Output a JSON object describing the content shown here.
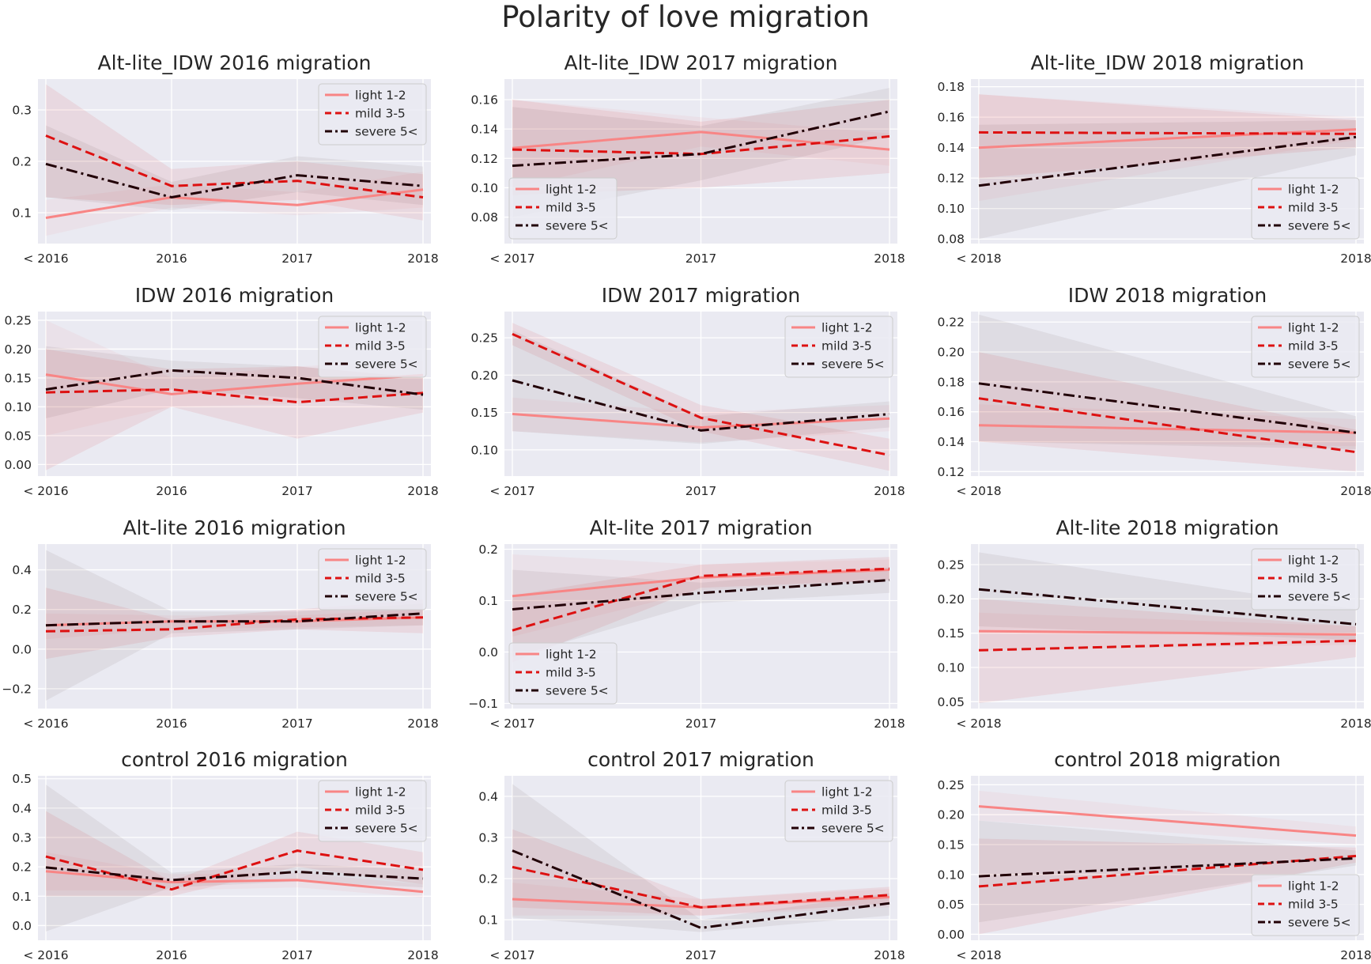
{
  "figure": {
    "title": "Polarity of love migration"
  },
  "series_style": {
    "light": {
      "label": "light 1-2",
      "color": "#f88585"
    },
    "mild": {
      "label": "mild 3-5",
      "color": "#dd1111"
    },
    "severe": {
      "label": "severe 5<",
      "color": "#210006"
    }
  },
  "chart_data": [
    {
      "type": "line",
      "title": "Alt-lite_IDW 2016 migration",
      "categories": [
        "< 2016",
        "2016",
        "2017",
        "2018"
      ],
      "ylim": [
        0.04,
        0.36
      ],
      "yticks": [
        0.1,
        0.2,
        0.3
      ],
      "yfmt": 1,
      "legend": "top-right",
      "series": [
        {
          "name": "light 1-2",
          "values": [
            0.09,
            0.13,
            0.115,
            0.145
          ],
          "lower": [
            0.055,
            0.11,
            0.095,
            0.11
          ],
          "upper": [
            0.125,
            0.155,
            0.14,
            0.18
          ]
        },
        {
          "name": "mild 3-5",
          "values": [
            0.25,
            0.152,
            0.162,
            0.13
          ],
          "lower": [
            0.13,
            0.115,
            0.125,
            0.085
          ],
          "upper": [
            0.35,
            0.185,
            0.2,
            0.175
          ]
        },
        {
          "name": "severe 5<",
          "values": [
            0.195,
            0.13,
            0.173,
            0.152
          ],
          "lower": [
            0.13,
            0.105,
            0.14,
            0.115
          ],
          "upper": [
            0.27,
            0.16,
            0.21,
            0.19
          ]
        }
      ]
    },
    {
      "type": "line",
      "title": "Alt-lite_IDW 2017 migration",
      "categories": [
        "< 2017",
        "2017",
        "2018"
      ],
      "ylim": [
        0.062,
        0.174
      ],
      "yticks": [
        0.08,
        0.1,
        0.12,
        0.14,
        0.16
      ],
      "yfmt": 2,
      "legend": "bottom-left",
      "series": [
        {
          "name": "light 1-2",
          "values": [
            0.127,
            0.138,
            0.126
          ],
          "lower": [
            0.1,
            0.128,
            0.115
          ],
          "upper": [
            0.16,
            0.148,
            0.137
          ]
        },
        {
          "name": "mild 3-5",
          "values": [
            0.126,
            0.123,
            0.135
          ],
          "lower": [
            0.095,
            0.1,
            0.11
          ],
          "upper": [
            0.16,
            0.145,
            0.16
          ]
        },
        {
          "name": "severe 5<",
          "values": [
            0.115,
            0.123,
            0.152
          ],
          "lower": [
            0.08,
            0.105,
            0.135
          ],
          "upper": [
            0.155,
            0.142,
            0.168
          ]
        }
      ]
    },
    {
      "type": "line",
      "title": "Alt-lite_IDW 2018 migration",
      "categories": [
        "< 2018",
        "2018"
      ],
      "ylim": [
        0.077,
        0.185
      ],
      "yticks": [
        0.08,
        0.1,
        0.12,
        0.14,
        0.16,
        0.18
      ],
      "yfmt": 2,
      "legend": "bottom-right",
      "series": [
        {
          "name": "light 1-2",
          "values": [
            0.14,
            0.152
          ],
          "lower": [
            0.105,
            0.145
          ],
          "upper": [
            0.175,
            0.16
          ]
        },
        {
          "name": "mild 3-5",
          "values": [
            0.15,
            0.149
          ],
          "lower": [
            0.12,
            0.14
          ],
          "upper": [
            0.175,
            0.158
          ]
        },
        {
          "name": "severe 5<",
          "values": [
            0.115,
            0.147
          ],
          "lower": [
            0.08,
            0.135
          ],
          "upper": [
            0.155,
            0.158
          ]
        }
      ]
    },
    {
      "type": "line",
      "title": "IDW 2016 migration",
      "categories": [
        "< 2016",
        "2016",
        "2017",
        "2018"
      ],
      "ylim": [
        -0.02,
        0.265
      ],
      "yticks": [
        0,
        0.05,
        0.1,
        0.15,
        0.2,
        0.25
      ],
      "yfmt": 2,
      "legend": "top-right",
      "series": [
        {
          "name": "light 1-2",
          "values": [
            0.156,
            0.122,
            0.14,
            0.155
          ],
          "lower": [
            0.05,
            0.1,
            0.105,
            0.125
          ],
          "upper": [
            0.25,
            0.15,
            0.17,
            0.18
          ]
        },
        {
          "name": "mild 3-5",
          "values": [
            0.125,
            0.13,
            0.108,
            0.124
          ],
          "lower": [
            -0.01,
            0.1,
            0.045,
            0.09
          ],
          "upper": [
            0.2,
            0.165,
            0.17,
            0.15
          ]
        },
        {
          "name": "severe 5<",
          "values": [
            0.13,
            0.163,
            0.15,
            0.121
          ],
          "lower": [
            0.08,
            0.13,
            0.115,
            0.095
          ],
          "upper": [
            0.205,
            0.18,
            0.17,
            0.15
          ]
        }
      ]
    },
    {
      "type": "line",
      "title": "IDW 2017 migration",
      "categories": [
        "< 2017",
        "2017",
        "2018"
      ],
      "ylim": [
        0.065,
        0.285
      ],
      "yticks": [
        0.1,
        0.15,
        0.2,
        0.25
      ],
      "yfmt": 2,
      "legend": "top-right",
      "series": [
        {
          "name": "light 1-2",
          "values": [
            0.148,
            0.13,
            0.142
          ],
          "lower": [
            0.125,
            0.11,
            0.125
          ],
          "upper": [
            0.17,
            0.15,
            0.16
          ]
        },
        {
          "name": "mild 3-5",
          "values": [
            0.255,
            0.143,
            0.093
          ],
          "lower": [
            0.24,
            0.125,
            0.072
          ],
          "upper": [
            0.27,
            0.16,
            0.115
          ]
        },
        {
          "name": "severe 5<",
          "values": [
            0.193,
            0.126,
            0.148
          ],
          "lower": [
            0.125,
            0.108,
            0.13
          ],
          "upper": [
            0.26,
            0.145,
            0.165
          ]
        }
      ]
    },
    {
      "type": "line",
      "title": "IDW 2018 migration",
      "categories": [
        "< 2018",
        "2018"
      ],
      "ylim": [
        0.117,
        0.227
      ],
      "yticks": [
        0.12,
        0.14,
        0.16,
        0.18,
        0.2,
        0.22
      ],
      "yfmt": 2,
      "legend": "top-right",
      "series": [
        {
          "name": "light 1-2",
          "values": [
            0.151,
            0.146
          ],
          "lower": [
            0.14,
            0.137
          ],
          "upper": [
            0.165,
            0.155
          ]
        },
        {
          "name": "mild 3-5",
          "values": [
            0.169,
            0.133
          ],
          "lower": [
            0.14,
            0.12
          ],
          "upper": [
            0.2,
            0.148
          ]
        },
        {
          "name": "severe 5<",
          "values": [
            0.179,
            0.146
          ],
          "lower": [
            0.14,
            0.135
          ],
          "upper": [
            0.225,
            0.157
          ]
        }
      ]
    },
    {
      "type": "line",
      "title": "Alt-lite 2016 migration",
      "categories": [
        "< 2016",
        "2016",
        "2017",
        "2018"
      ],
      "ylim": [
        -0.3,
        0.53
      ],
      "yticks": [
        -0.2,
        0,
        0.2,
        0.4
      ],
      "yfmt": 1,
      "legend": "top-right",
      "series": [
        {
          "name": "light 1-2",
          "values": [
            0.12,
            0.14,
            0.14,
            0.16
          ],
          "lower": [
            0.05,
            0.1,
            0.11,
            0.12
          ],
          "upper": [
            0.18,
            0.17,
            0.17,
            0.2
          ]
        },
        {
          "name": "mild 3-5",
          "values": [
            0.09,
            0.1,
            0.15,
            0.16
          ],
          "lower": [
            -0.05,
            0.06,
            0.1,
            0.08
          ],
          "upper": [
            0.31,
            0.15,
            0.2,
            0.25
          ]
        },
        {
          "name": "severe 5<",
          "values": [
            0.12,
            0.14,
            0.14,
            0.18
          ],
          "lower": [
            -0.26,
            0.08,
            0.1,
            0.12
          ],
          "upper": [
            0.5,
            0.19,
            0.19,
            0.23
          ]
        }
      ]
    },
    {
      "type": "line",
      "title": "Alt-lite 2017 migration",
      "categories": [
        "< 2017",
        "2017",
        "2018"
      ],
      "ylim": [
        -0.11,
        0.21
      ],
      "yticks": [
        -0.1,
        0,
        0.1,
        0.2
      ],
      "yfmt": 1,
      "legend": "bottom-left",
      "series": [
        {
          "name": "light 1-2",
          "values": [
            0.109,
            0.145,
            0.16
          ],
          "lower": [
            0.03,
            0.12,
            0.14
          ],
          "upper": [
            0.19,
            0.17,
            0.18
          ]
        },
        {
          "name": "mild 3-5",
          "values": [
            0.042,
            0.148,
            0.162
          ],
          "lower": [
            -0.02,
            0.125,
            0.14
          ],
          "upper": [
            0.11,
            0.17,
            0.185
          ]
        },
        {
          "name": "severe 5<",
          "values": [
            0.083,
            0.115,
            0.14
          ],
          "lower": [
            -0.01,
            0.095,
            0.115
          ],
          "upper": [
            0.16,
            0.135,
            0.165
          ]
        }
      ]
    },
    {
      "type": "line",
      "title": "Alt-lite 2018 migration",
      "categories": [
        "< 2018",
        "2018"
      ],
      "ylim": [
        0.04,
        0.28
      ],
      "yticks": [
        0.05,
        0.1,
        0.15,
        0.2,
        0.25
      ],
      "yfmt": 2,
      "legend": "top-right",
      "series": [
        {
          "name": "light 1-2",
          "values": [
            0.153,
            0.148
          ],
          "lower": [
            0.125,
            0.133
          ],
          "upper": [
            0.18,
            0.16
          ]
        },
        {
          "name": "mild 3-5",
          "values": [
            0.125,
            0.139
          ],
          "lower": [
            0.048,
            0.115
          ],
          "upper": [
            0.2,
            0.16
          ]
        },
        {
          "name": "severe 5<",
          "values": [
            0.214,
            0.163
          ],
          "lower": [
            0.16,
            0.14
          ],
          "upper": [
            0.268,
            0.185
          ]
        }
      ]
    },
    {
      "type": "line",
      "title": "control 2016 migration",
      "categories": [
        "< 2016",
        "2016",
        "2017",
        "2018"
      ],
      "ylim": [
        -0.05,
        0.51
      ],
      "yticks": [
        0,
        0.1,
        0.2,
        0.3,
        0.4,
        0.5
      ],
      "yfmt": 1,
      "legend": "top-right",
      "series": [
        {
          "name": "light 1-2",
          "values": [
            0.185,
            0.148,
            0.155,
            0.115
          ],
          "lower": [
            0.12,
            0.12,
            0.13,
            0.095
          ],
          "upper": [
            0.25,
            0.175,
            0.18,
            0.14
          ]
        },
        {
          "name": "mild 3-5",
          "values": [
            0.235,
            0.123,
            0.255,
            0.19
          ],
          "lower": [
            0.1,
            0.1,
            0.2,
            0.14
          ],
          "upper": [
            0.39,
            0.15,
            0.32,
            0.25
          ]
        },
        {
          "name": "severe 5<",
          "values": [
            0.198,
            0.155,
            0.183,
            0.16
          ],
          "lower": [
            -0.02,
            0.13,
            0.15,
            0.13
          ],
          "upper": [
            0.48,
            0.18,
            0.21,
            0.19
          ]
        }
      ]
    },
    {
      "type": "line",
      "title": "control 2017 migration",
      "categories": [
        "< 2017",
        "2017",
        "2018"
      ],
      "ylim": [
        0.05,
        0.45
      ],
      "yticks": [
        0.1,
        0.2,
        0.3,
        0.4
      ],
      "yfmt": 1,
      "legend": "top-right",
      "series": [
        {
          "name": "light 1-2",
          "values": [
            0.15,
            0.13,
            0.155
          ],
          "lower": [
            0.11,
            0.11,
            0.13
          ],
          "upper": [
            0.19,
            0.15,
            0.175
          ]
        },
        {
          "name": "mild 3-5",
          "values": [
            0.228,
            0.13,
            0.16
          ],
          "lower": [
            0.13,
            0.11,
            0.14
          ],
          "upper": [
            0.32,
            0.15,
            0.18
          ]
        },
        {
          "name": "severe 5<",
          "values": [
            0.268,
            0.08,
            0.14
          ],
          "lower": [
            0.105,
            0.07,
            0.11
          ],
          "upper": [
            0.43,
            0.1,
            0.165
          ]
        }
      ]
    },
    {
      "type": "line",
      "title": "control 2018 migration",
      "categories": [
        "< 2018",
        "2018"
      ],
      "ylim": [
        -0.01,
        0.265
      ],
      "yticks": [
        0,
        0.05,
        0.1,
        0.15,
        0.2,
        0.25
      ],
      "yfmt": 2,
      "legend": "bottom-right",
      "series": [
        {
          "name": "light 1-2",
          "values": [
            0.214,
            0.165
          ],
          "lower": [
            0.19,
            0.15
          ],
          "upper": [
            0.24,
            0.18
          ]
        },
        {
          "name": "mild 3-5",
          "values": [
            0.08,
            0.131
          ],
          "lower": [
            0.0,
            0.12
          ],
          "upper": [
            0.16,
            0.145
          ]
        },
        {
          "name": "severe 5<",
          "values": [
            0.097,
            0.127
          ],
          "lower": [
            0.02,
            0.115
          ],
          "upper": [
            0.19,
            0.14
          ]
        }
      ]
    }
  ]
}
